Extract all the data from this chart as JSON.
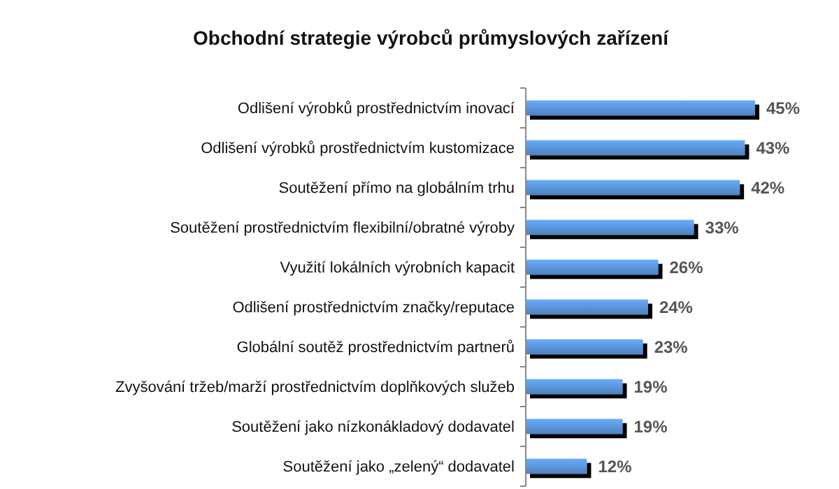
{
  "chart_data": {
    "type": "bar",
    "orientation": "horizontal",
    "title": "Obchodní strategie výrobců průmyslových zařízení",
    "categories": [
      "Odlišení výrobků prostřednictvím inovací",
      "Odlišení výrobků prostřednictvím kustomizace",
      "Soutěžení přímo na globálním trhu",
      "Soutěžení prostřednictvím flexibilní/obratné výroby",
      "Využití lokálních výrobních kapacit",
      "Odlišení prostřednictvím značky/reputace",
      "Globální soutěž prostřednictvím partnerů",
      "Zvyšování tržeb/marží prostřednictvím doplňkových služeb",
      "Soutěžení jako nízkonákladový dodavatel",
      "Soutěžení jako „zelený“ dodavatel"
    ],
    "values": [
      45,
      43,
      42,
      33,
      26,
      24,
      23,
      19,
      19,
      12
    ],
    "value_labels": [
      "45%",
      "43%",
      "42%",
      "33%",
      "26%",
      "24%",
      "23%",
      "19%",
      "19%",
      "12%"
    ],
    "color": "#4f81bd"
  }
}
